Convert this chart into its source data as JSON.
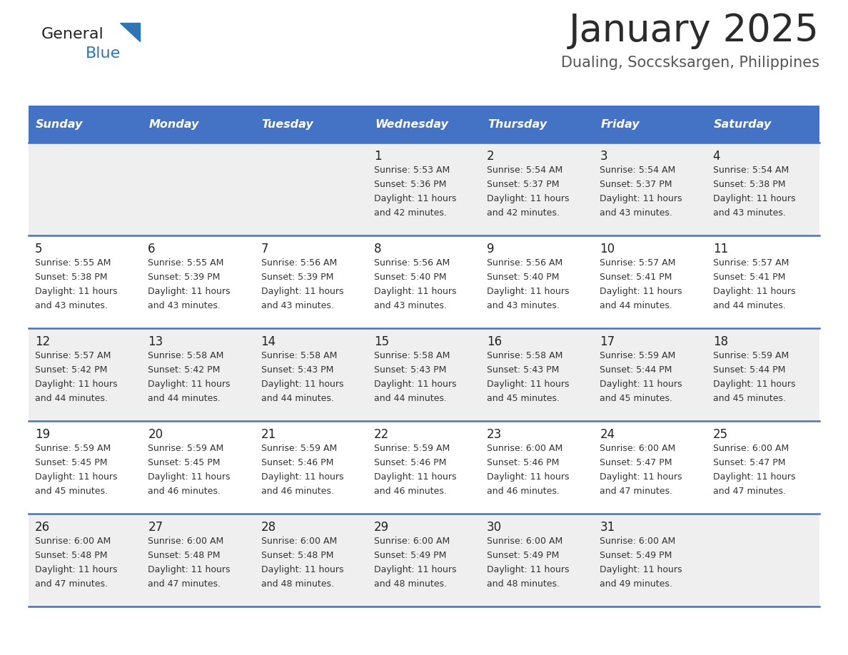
{
  "title": "January 2025",
  "subtitle": "Dualing, Soccsksargen, Philippines",
  "header_color": "#4472C4",
  "header_text_color": "#FFFFFF",
  "days_of_week": [
    "Sunday",
    "Monday",
    "Tuesday",
    "Wednesday",
    "Thursday",
    "Friday",
    "Saturday"
  ],
  "background_color": "#FFFFFF",
  "cell_bg_odd": "#EFEFEF",
  "cell_bg_even": "#FFFFFF",
  "separator_color": "#4472C4",
  "title_color": "#2B2B2B",
  "subtitle_color": "#555555",
  "cell_text_color": "#333333",
  "day_num_color": "#222222",
  "logo_general_color": "#222222",
  "logo_blue_color": "#2E75B6",
  "logo_triangle_color": "#2E75B6",
  "calendar_data": [
    [
      null,
      null,
      null,
      {
        "day": 1,
        "sunrise": "5:53 AM",
        "sunset": "5:36 PM",
        "daylight": "11 hours and 42 minutes"
      },
      {
        "day": 2,
        "sunrise": "5:54 AM",
        "sunset": "5:37 PM",
        "daylight": "11 hours and 42 minutes"
      },
      {
        "day": 3,
        "sunrise": "5:54 AM",
        "sunset": "5:37 PM",
        "daylight": "11 hours and 43 minutes"
      },
      {
        "day": 4,
        "sunrise": "5:54 AM",
        "sunset": "5:38 PM",
        "daylight": "11 hours and 43 minutes"
      }
    ],
    [
      {
        "day": 5,
        "sunrise": "5:55 AM",
        "sunset": "5:38 PM",
        "daylight": "11 hours and 43 minutes"
      },
      {
        "day": 6,
        "sunrise": "5:55 AM",
        "sunset": "5:39 PM",
        "daylight": "11 hours and 43 minutes"
      },
      {
        "day": 7,
        "sunrise": "5:56 AM",
        "sunset": "5:39 PM",
        "daylight": "11 hours and 43 minutes"
      },
      {
        "day": 8,
        "sunrise": "5:56 AM",
        "sunset": "5:40 PM",
        "daylight": "11 hours and 43 minutes"
      },
      {
        "day": 9,
        "sunrise": "5:56 AM",
        "sunset": "5:40 PM",
        "daylight": "11 hours and 43 minutes"
      },
      {
        "day": 10,
        "sunrise": "5:57 AM",
        "sunset": "5:41 PM",
        "daylight": "11 hours and 44 minutes"
      },
      {
        "day": 11,
        "sunrise": "5:57 AM",
        "sunset": "5:41 PM",
        "daylight": "11 hours and 44 minutes"
      }
    ],
    [
      {
        "day": 12,
        "sunrise": "5:57 AM",
        "sunset": "5:42 PM",
        "daylight": "11 hours and 44 minutes"
      },
      {
        "day": 13,
        "sunrise": "5:58 AM",
        "sunset": "5:42 PM",
        "daylight": "11 hours and 44 minutes"
      },
      {
        "day": 14,
        "sunrise": "5:58 AM",
        "sunset": "5:43 PM",
        "daylight": "11 hours and 44 minutes"
      },
      {
        "day": 15,
        "sunrise": "5:58 AM",
        "sunset": "5:43 PM",
        "daylight": "11 hours and 44 minutes"
      },
      {
        "day": 16,
        "sunrise": "5:58 AM",
        "sunset": "5:43 PM",
        "daylight": "11 hours and 45 minutes"
      },
      {
        "day": 17,
        "sunrise": "5:59 AM",
        "sunset": "5:44 PM",
        "daylight": "11 hours and 45 minutes"
      },
      {
        "day": 18,
        "sunrise": "5:59 AM",
        "sunset": "5:44 PM",
        "daylight": "11 hours and 45 minutes"
      }
    ],
    [
      {
        "day": 19,
        "sunrise": "5:59 AM",
        "sunset": "5:45 PM",
        "daylight": "11 hours and 45 minutes"
      },
      {
        "day": 20,
        "sunrise": "5:59 AM",
        "sunset": "5:45 PM",
        "daylight": "11 hours and 46 minutes"
      },
      {
        "day": 21,
        "sunrise": "5:59 AM",
        "sunset": "5:46 PM",
        "daylight": "11 hours and 46 minutes"
      },
      {
        "day": 22,
        "sunrise": "5:59 AM",
        "sunset": "5:46 PM",
        "daylight": "11 hours and 46 minutes"
      },
      {
        "day": 23,
        "sunrise": "6:00 AM",
        "sunset": "5:46 PM",
        "daylight": "11 hours and 46 minutes"
      },
      {
        "day": 24,
        "sunrise": "6:00 AM",
        "sunset": "5:47 PM",
        "daylight": "11 hours and 47 minutes"
      },
      {
        "day": 25,
        "sunrise": "6:00 AM",
        "sunset": "5:47 PM",
        "daylight": "11 hours and 47 minutes"
      }
    ],
    [
      {
        "day": 26,
        "sunrise": "6:00 AM",
        "sunset": "5:48 PM",
        "daylight": "11 hours and 47 minutes"
      },
      {
        "day": 27,
        "sunrise": "6:00 AM",
        "sunset": "5:48 PM",
        "daylight": "11 hours and 47 minutes"
      },
      {
        "day": 28,
        "sunrise": "6:00 AM",
        "sunset": "5:48 PM",
        "daylight": "11 hours and 48 minutes"
      },
      {
        "day": 29,
        "sunrise": "6:00 AM",
        "sunset": "5:49 PM",
        "daylight": "11 hours and 48 minutes"
      },
      {
        "day": 30,
        "sunrise": "6:00 AM",
        "sunset": "5:49 PM",
        "daylight": "11 hours and 48 minutes"
      },
      {
        "day": 31,
        "sunrise": "6:00 AM",
        "sunset": "5:49 PM",
        "daylight": "11 hours and 49 minutes"
      },
      null
    ]
  ]
}
